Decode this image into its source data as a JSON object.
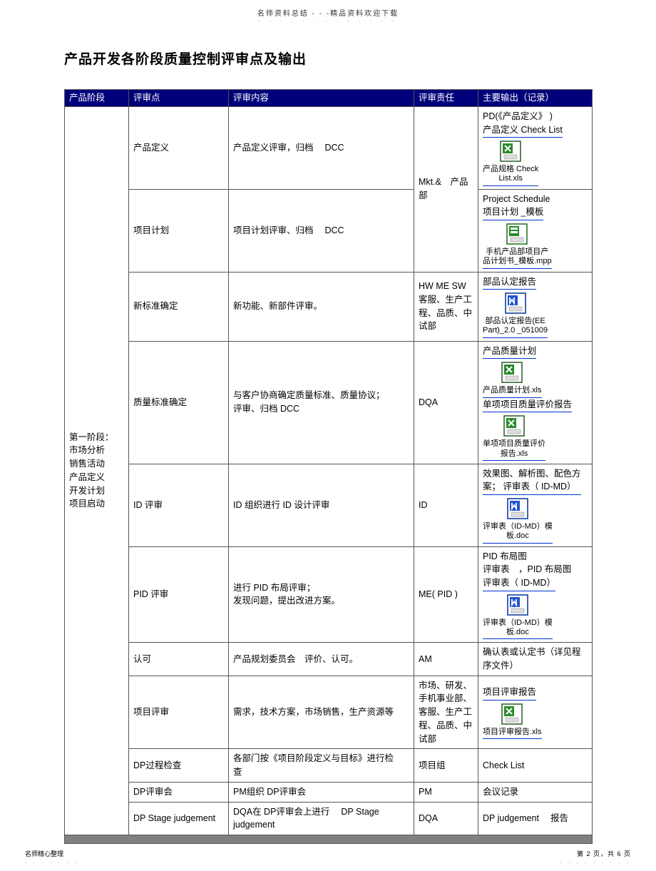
{
  "header": {
    "topText": "名师资料总结 - - -精品资料欢迎下载",
    "title": "产品开发各阶段质量控制评审点及输出"
  },
  "columns": {
    "c1": "产品阶段",
    "c2": "评审点",
    "c3": "评审内容",
    "c4": "评审责任",
    "c5": "主要输出（记录）"
  },
  "phase1": "第一阶段：\n市场分析\n销售活动\n产品定义\n开发计划\n项目启动",
  "rows": [
    {
      "point": "产品定义",
      "content": "产品定义评审，归档　 DCC",
      "resp": "Mkt.&　产品部",
      "output": {
        "lines": [
          "PD(《产品定义》 )",
          "产品定义  Check List"
        ],
        "file": {
          "icon": "xls",
          "label": "产品规格 Check\nList.xls"
        }
      }
    },
    {
      "point": "项目计划",
      "content": "项目计划评审、归档　 DCC",
      "output": {
        "lines": [
          "Project Schedule",
          "项目计划  _模板"
        ],
        "file": {
          "icon": "mpp",
          "label": "手机产品部项目产\n品计划书_模板.mpp"
        }
      }
    },
    {
      "point": "新标准确定",
      "content": "新功能、新部件评审。",
      "resp": "HW ME  SW\n客服、生产工\n程、品质、中\n试部",
      "output": {
        "lines": [
          "部品认定报告"
        ],
        "file": {
          "icon": "doc",
          "label": "部品认定报告(EE\nPart)_2.0 _051009"
        }
      }
    },
    {
      "point": "质量标准确定",
      "content": "与客户协商确定质量标准、质量协议；\n评审、归档  DCC",
      "resp": "DQA",
      "output": {
        "lines": [
          "产品质量计划"
        ],
        "file": {
          "icon": "xls",
          "label": "产品质量计划.xls"
        },
        "lines2": [
          "单项项目质量评价报告"
        ],
        "file2": {
          "icon": "xls",
          "label": "单项项目质量评价\n报告.xls"
        }
      }
    },
    {
      "point": "ID 评审",
      "content": "ID 组织进行  ID 设计评审",
      "resp": "ID",
      "output": {
        "lines": [
          "效果图、解析图、配色方\n案； 评审表（ ID-MD）"
        ],
        "file": {
          "icon": "doc",
          "label": "评审表（ID-MD）模\n板.doc"
        }
      }
    },
    {
      "point": "PID 评审",
      "content": "进行 PID 布局评审；\n发现问题，提出改进方案。",
      "resp": "ME( PID )",
      "output": {
        "lines": [
          "PID 布局图",
          "评审表　，PID 布局图",
          "评审表（ ID-MD）"
        ],
        "file": {
          "icon": "doc",
          "label": "评审表（ID-MD）模\n板.doc"
        }
      }
    },
    {
      "point": "认可",
      "content": "产品规划委员会　评价、认可。",
      "resp": "AM",
      "output": {
        "plain": "确认表或认定书（详见程\n序文件）"
      }
    },
    {
      "point": "项目评审",
      "content": "需求，技术方案，市场销售，生产资源等",
      "resp": "市场、研发、\n手机事业部、\n客服、生产工\n程、品质、中\n试部",
      "output": {
        "lines": [
          "项目评审报告"
        ],
        "file": {
          "icon": "xls",
          "label": "项目评审报告.xls"
        }
      }
    },
    {
      "point": "DP过程检查",
      "content": "各部门按《项目阶段定义与目标》进行检\n查",
      "resp": "项目组",
      "output": {
        "plain": "Check List"
      }
    },
    {
      "point": "DP评审会",
      "content": "PM组织 DP评审会",
      "resp": "PM",
      "output": {
        "plain": "会议记录"
      }
    },
    {
      "point": "DP Stage judgement",
      "content": "DQA在 DP评审会上进行　 DP Stage\njudgement",
      "resp": "DQA",
      "output": {
        "plain": "DP judgement　 报告"
      }
    }
  ],
  "footer": {
    "left": "名师精心整理",
    "right": "第 2 页，共 6 页"
  },
  "icons": {
    "xls": {
      "bg": "#ffffff",
      "border": "#2a5c2a",
      "accent": "#2a8a2a"
    },
    "doc": {
      "bg": "#ffffff",
      "border": "#003399",
      "accent": "#2255cc"
    },
    "mpp": {
      "bg": "#ffffff",
      "border": "#1a6d1a",
      "accent": "#2a8a2a"
    }
  }
}
